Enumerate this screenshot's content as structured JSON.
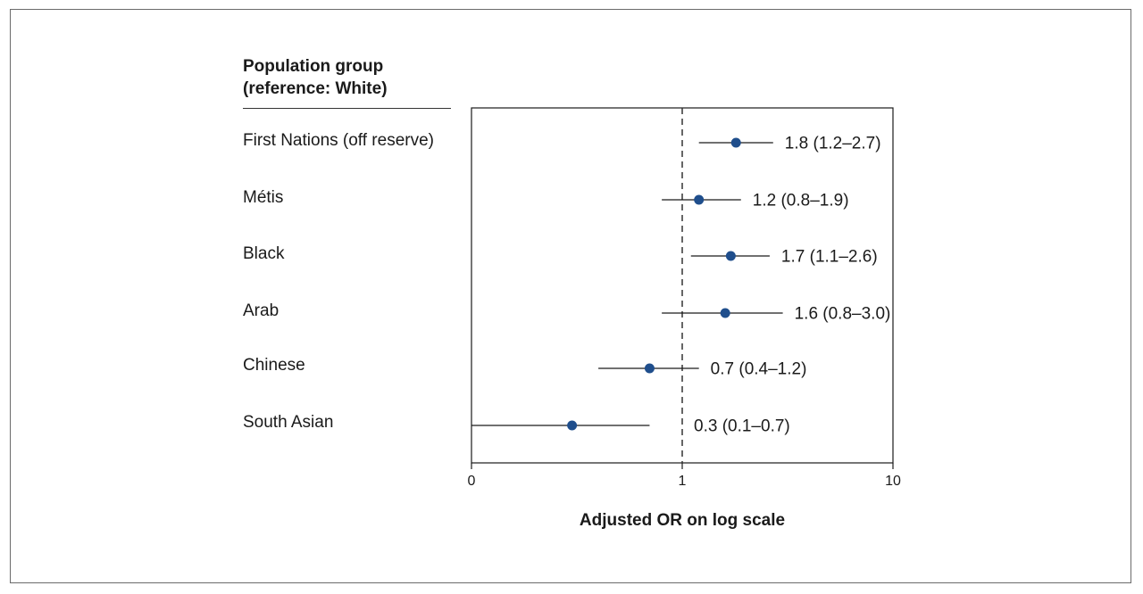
{
  "chart_data": {
    "type": "forest",
    "header_line1": "Population group",
    "header_line2": "(reference: White)",
    "xlabel": "Adjusted OR on log scale",
    "x_scale": "log",
    "x_ticks": [
      "0",
      "1",
      "10"
    ],
    "reference_line": 1,
    "marker_color": "#1f4e8c",
    "rows": [
      {
        "label": "First Nations (off reserve)",
        "or": 1.8,
        "lo": 1.2,
        "hi": 2.7,
        "ci_text": "1.8 (1.2–2.7)"
      },
      {
        "label": "Métis",
        "or": 1.2,
        "lo": 0.8,
        "hi": 1.9,
        "ci_text": "1.2 (0.8–1.9)"
      },
      {
        "label": "Black",
        "or": 1.7,
        "lo": 1.1,
        "hi": 2.6,
        "ci_text": "1.7 (1.1–2.6)"
      },
      {
        "label": "Arab",
        "or": 1.6,
        "lo": 0.8,
        "hi": 3.0,
        "ci_text": "1.6 (0.8–3.0)"
      },
      {
        "label": "Chinese",
        "or": 0.7,
        "lo": 0.4,
        "hi": 1.2,
        "ci_text": "0.7 (0.4–1.2)"
      },
      {
        "label": "South Asian",
        "or": 0.3,
        "lo": 0.1,
        "hi": 0.7,
        "ci_text": "0.3 (0.1–0.7)"
      }
    ]
  }
}
